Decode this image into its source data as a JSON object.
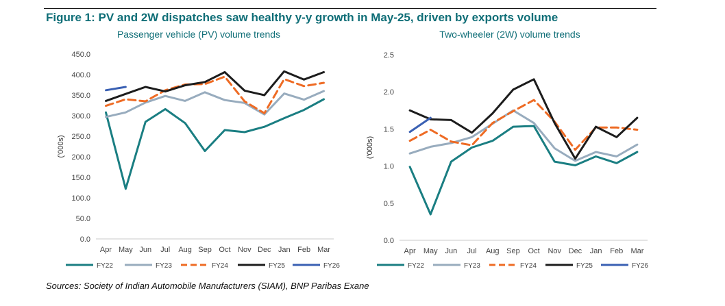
{
  "figure": {
    "title": "Figure 1: PV and 2W dispatches saw healthy y-y growth in May-25, driven by exports volume",
    "source": "Sources: Society of Indian Automobile Manufacturers (SIAM), BNP Paribas Exane"
  },
  "colors": {
    "FY22": "#1a7e82",
    "FY23": "#98acbe",
    "FY24": "#ee6b24",
    "FY25": "#1c1c1c",
    "FY26": "#3a60b3",
    "title": "#0f6e77"
  },
  "chart_data": [
    {
      "type": "line",
      "title": "Passenger vehicle (PV) volume trends",
      "xlabel": "",
      "ylabel": "('000s)",
      "ylim": [
        0,
        450
      ],
      "ytick_labels": [
        "0.0",
        "50.0",
        "100.0",
        "150.0",
        "200.0",
        "250.0",
        "300.0",
        "350.0",
        "400.0",
        "450.0"
      ],
      "categories": [
        "Apr",
        "May",
        "Jun",
        "Jul",
        "Aug",
        "Sep",
        "Oct",
        "Nov",
        "Dec",
        "Jan",
        "Feb",
        "Mar"
      ],
      "grid": false,
      "legend": "bottom",
      "series": [
        {
          "name": "FY22",
          "values": [
            308,
            122,
            285,
            316,
            282,
            214,
            265,
            260,
            273,
            294,
            314,
            340
          ]
        },
        {
          "name": "FY23",
          "values": [
            297,
            308,
            332,
            348,
            336,
            357,
            338,
            331,
            303,
            354,
            339,
            360
          ]
        },
        {
          "name": "FY24",
          "values": [
            324,
            340,
            335,
            362,
            376,
            377,
            395,
            335,
            306,
            389,
            372,
            380
          ]
        },
        {
          "name": "FY25",
          "values": [
            336,
            353,
            370,
            359,
            374,
            382,
            406,
            361,
            350,
            408,
            388,
            406
          ]
        },
        {
          "name": "FY26",
          "values": [
            362,
            370,
            null,
            null,
            null,
            null,
            null,
            null,
            null,
            null,
            null,
            null
          ]
        }
      ]
    },
    {
      "type": "line",
      "title": "Two-wheeler (2W) volume trends",
      "xlabel": "",
      "ylabel": "('000s)",
      "ylim": [
        0,
        2.5
      ],
      "ytick_labels": [
        "0.0",
        "0.5",
        "1.0",
        "1.5",
        "2.0",
        "2.5"
      ],
      "categories": [
        "Apr",
        "May",
        "Jun",
        "Jul",
        "Aug",
        "Sep",
        "Oct",
        "Nov",
        "Dec",
        "Jan",
        "Feb",
        "Mar"
      ],
      "grid": false,
      "legend": "bottom",
      "series": [
        {
          "name": "FY22",
          "values": [
            0.99,
            0.35,
            1.06,
            1.25,
            1.34,
            1.53,
            1.54,
            1.06,
            1.01,
            1.13,
            1.04,
            1.19
          ]
        },
        {
          "name": "FY23",
          "values": [
            1.17,
            1.26,
            1.31,
            1.39,
            1.57,
            1.75,
            1.58,
            1.24,
            1.07,
            1.19,
            1.13,
            1.29
          ]
        },
        {
          "name": "FY24",
          "values": [
            1.34,
            1.49,
            1.33,
            1.28,
            1.58,
            1.74,
            1.89,
            1.6,
            1.22,
            1.52,
            1.52,
            1.49
          ]
        },
        {
          "name": "FY25",
          "values": [
            1.75,
            1.63,
            1.62,
            1.45,
            1.71,
            2.03,
            2.17,
            1.58,
            1.1,
            1.53,
            1.39,
            1.65
          ]
        },
        {
          "name": "FY26",
          "values": [
            1.46,
            1.65,
            null,
            null,
            null,
            null,
            null,
            null,
            null,
            null,
            null,
            null
          ]
        }
      ]
    }
  ]
}
